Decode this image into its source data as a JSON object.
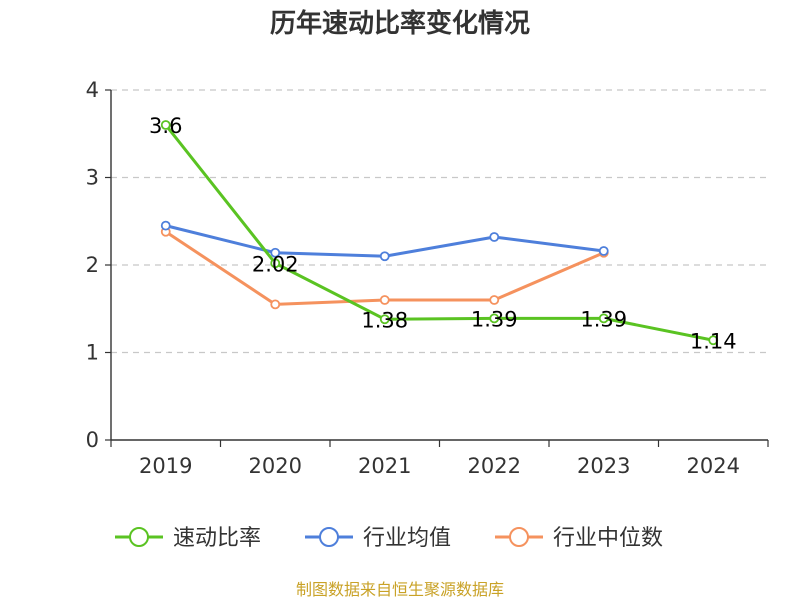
{
  "chart_data": {
    "type": "line",
    "title": "历年速动比率变化情况",
    "categories": [
      "2019",
      "2020",
      "2021",
      "2022",
      "2023",
      "2024"
    ],
    "y_ticks": [
      "0",
      "1",
      "2",
      "3",
      "4"
    ],
    "ylim": [
      0,
      4
    ],
    "grid": true,
    "legend_position": "bottom",
    "series": [
      {
        "name": "速动比率",
        "color": "#5ac322",
        "values": [
          3.6,
          2.02,
          1.38,
          1.39,
          1.39,
          1.14
        ],
        "labels": [
          "3.6",
          "2.02",
          "1.38",
          "1.39",
          "1.39",
          "1.14"
        ]
      },
      {
        "name": "行业均值",
        "color": "#4e7fdb",
        "values": [
          2.45,
          2.14,
          2.1,
          2.32,
          2.16,
          null
        ]
      },
      {
        "name": "行业中位数",
        "color": "#f5925e",
        "values": [
          2.38,
          1.55,
          1.6,
          1.6,
          2.14,
          null
        ]
      }
    ]
  },
  "source": {
    "text": "制图数据来自恒生聚源数据库",
    "color": "#c9a227"
  }
}
